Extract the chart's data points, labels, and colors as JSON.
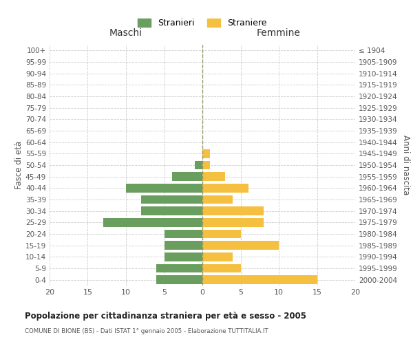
{
  "age_groups": [
    "0-4",
    "5-9",
    "10-14",
    "15-19",
    "20-24",
    "25-29",
    "30-34",
    "35-39",
    "40-44",
    "45-49",
    "50-54",
    "55-59",
    "60-64",
    "65-69",
    "70-74",
    "75-79",
    "80-84",
    "85-89",
    "90-94",
    "95-99",
    "100+"
  ],
  "birth_years": [
    "2000-2004",
    "1995-1999",
    "1990-1994",
    "1985-1989",
    "1980-1984",
    "1975-1979",
    "1970-1974",
    "1965-1969",
    "1960-1964",
    "1955-1959",
    "1950-1954",
    "1945-1949",
    "1940-1944",
    "1935-1939",
    "1930-1934",
    "1925-1929",
    "1920-1924",
    "1915-1919",
    "1910-1914",
    "1905-1909",
    "≤ 1904"
  ],
  "maschi": [
    6,
    6,
    5,
    5,
    5,
    13,
    8,
    8,
    10,
    4,
    1,
    0,
    0,
    0,
    0,
    0,
    0,
    0,
    0,
    0,
    0
  ],
  "femmine": [
    15,
    5,
    4,
    10,
    5,
    8,
    8,
    4,
    6,
    3,
    1,
    1,
    0,
    0,
    0,
    0,
    0,
    0,
    0,
    0,
    0
  ],
  "maschi_color": "#6a9e5f",
  "femmine_color": "#f5c040",
  "title": "Popolazione per cittadinanza straniera per età e sesso - 2005",
  "subtitle": "COMUNE DI BIONE (BS) - Dati ISTAT 1° gennaio 2005 - Elaborazione TUTTITALIA.IT",
  "ylabel_left": "Fasce di età",
  "ylabel_right": "Anni di nascita",
  "xlabel_left": "Maschi",
  "xlabel_right": "Femmine",
  "legend_maschi": "Stranieri",
  "legend_femmine": "Straniere",
  "xlim": 20,
  "background_color": "#ffffff",
  "grid_color": "#cccccc",
  "dashed_line_color": "#999966"
}
